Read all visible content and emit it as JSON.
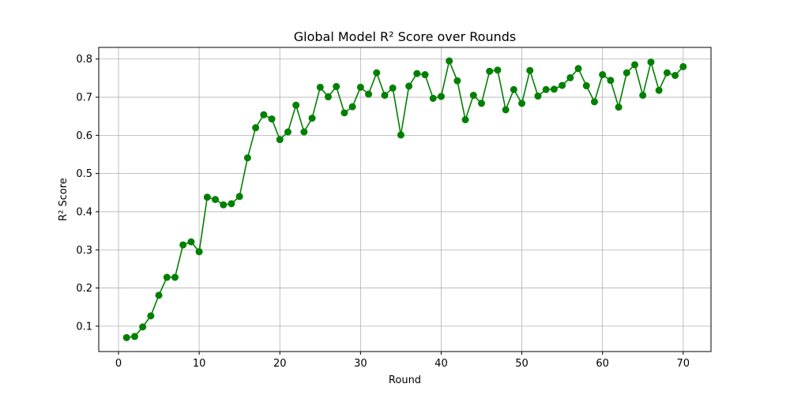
{
  "chart_data": {
    "type": "line",
    "title": "Global Model R² Score over Rounds",
    "xlabel": "Round",
    "ylabel": "R² Score",
    "xlim": [
      -2.45,
      73.45
    ],
    "ylim": [
      0.0335,
      0.8305
    ],
    "xticks": [
      0,
      10,
      20,
      30,
      40,
      50,
      60,
      70
    ],
    "yticks": [
      0.1,
      0.2,
      0.3,
      0.4,
      0.5,
      0.6,
      0.7,
      0.8
    ],
    "xtick_labels": [
      "0",
      "10",
      "20",
      "30",
      "40",
      "50",
      "60",
      "70"
    ],
    "ytick_labels": [
      "0.1",
      "0.2",
      "0.3",
      "0.4",
      "0.5",
      "0.6",
      "0.7",
      "0.8"
    ],
    "grid": true,
    "color": "#008000",
    "marker": "circle",
    "series": [
      {
        "x": [
          1,
          2,
          3,
          4,
          5,
          6,
          7,
          8,
          9,
          10,
          11,
          12,
          13,
          14,
          15,
          16,
          17,
          18,
          19,
          20,
          21,
          22,
          23,
          24,
          25,
          26,
          27,
          28,
          29,
          30,
          31,
          32,
          33,
          34,
          35,
          36,
          37,
          38,
          39,
          40,
          41,
          42,
          43,
          44,
          45,
          46,
          47,
          48,
          49,
          50,
          51,
          52,
          53,
          54,
          55,
          56,
          57,
          58,
          59,
          60,
          61,
          62,
          63,
          64,
          65,
          66,
          67,
          68,
          69,
          70
        ],
        "values": [
          0.07,
          0.073,
          0.098,
          0.127,
          0.181,
          0.228,
          0.228,
          0.313,
          0.321,
          0.295,
          0.438,
          0.432,
          0.418,
          0.421,
          0.44,
          0.541,
          0.62,
          0.654,
          0.643,
          0.589,
          0.609,
          0.679,
          0.609,
          0.645,
          0.726,
          0.701,
          0.728,
          0.659,
          0.675,
          0.726,
          0.708,
          0.764,
          0.705,
          0.724,
          0.601,
          0.729,
          0.762,
          0.759,
          0.697,
          0.702,
          0.795,
          0.743,
          0.641,
          0.705,
          0.684,
          0.768,
          0.771,
          0.667,
          0.72,
          0.684,
          0.77,
          0.703,
          0.72,
          0.721,
          0.731,
          0.751,
          0.775,
          0.73,
          0.688,
          0.759,
          0.744,
          0.674,
          0.764,
          0.785,
          0.705,
          0.792,
          0.718,
          0.764,
          0.757,
          0.78
        ]
      }
    ]
  }
}
